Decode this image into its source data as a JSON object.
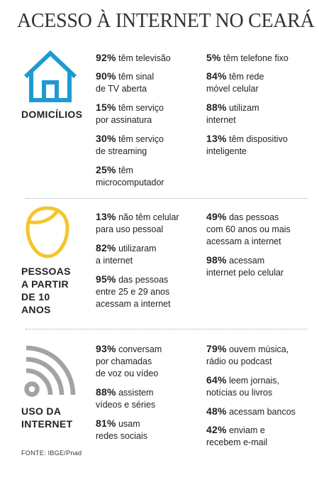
{
  "title": "ACESSO À INTERNET NO CEARÁ",
  "colors": {
    "accent": "#1d9bd1",
    "yellow": "#f5c52e",
    "gray": "#a3a3a3"
  },
  "sections": [
    {
      "label": "DOMICÍLIOS",
      "icon": "house-icon",
      "stats": [
        {
          "pct": "92%",
          "text": "têm televisão"
        },
        {
          "pct": "90%",
          "text": "têm sinal\nde TV aberta"
        },
        {
          "pct": "15%",
          "text": "têm serviço\npor assinatura"
        },
        {
          "pct": "30%",
          "text": "têm serviço\nde streaming"
        },
        {
          "pct": "25%",
          "text": "têm\nmicrocomputador"
        },
        {
          "pct": "5%",
          "text": "têm telefone fixo"
        },
        {
          "pct": "84%",
          "text": "têm rede\nmóvel celular"
        },
        {
          "pct": "88%",
          "text": "utilizam\ninternet"
        },
        {
          "pct": "13%",
          "text": "têm dispositivo\ninteligente"
        }
      ]
    },
    {
      "label": "PESSOAS\nA PARTIR\nDE 10\nANOS",
      "icon": "person-head-icon",
      "stats": [
        {
          "pct": "13%",
          "text": "não têm celular\npara uso pessoal"
        },
        {
          "pct": "82%",
          "text": "utilizaram\na internet"
        },
        {
          "pct": "95%",
          "text": "das pessoas\nentre 25 e 29 anos\nacessam a internet"
        },
        {
          "pct": "49%",
          "text": "das pessoas\ncom 60 anos ou mais\nacessam a internet"
        },
        {
          "pct": "98%",
          "text": "acessam\ninternet pelo celular"
        }
      ]
    },
    {
      "label": "USO DA\nINTERNET",
      "icon": "wifi-signal-icon",
      "stats": [
        {
          "pct": "93%",
          "text": "conversam\npor chamadas\nde voz ou vídeo"
        },
        {
          "pct": "88%",
          "text": "assistem\nvídeos e séries"
        },
        {
          "pct": "81%",
          "text": "usam\nredes sociais"
        },
        {
          "pct": "79%",
          "text": "ouvem música,\nrádio ou podcast"
        },
        {
          "pct": "64%",
          "text": "leem jornais,\nnotícias ou livros"
        },
        {
          "pct": "48%",
          "text": "acessam bancos"
        },
        {
          "pct": "42%",
          "text": "enviam e\nrecebem e-mail"
        }
      ]
    }
  ],
  "source": "FONTE: IBGE/Pnad"
}
